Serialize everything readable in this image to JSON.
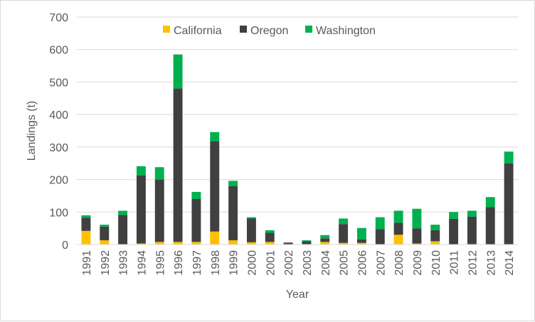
{
  "chart_data": {
    "type": "bar",
    "stacked": true,
    "title": "",
    "xlabel": "Year",
    "ylabel": "Landings (t)",
    "ylim": [
      0,
      700
    ],
    "yticks": [
      0,
      100,
      200,
      300,
      400,
      500,
      600,
      700
    ],
    "grid": "horizontal",
    "legend_position": "top-center",
    "categories": [
      "1991",
      "1992",
      "1993",
      "1994",
      "1995",
      "1996",
      "1997",
      "1998",
      "1999",
      "2000",
      "2001",
      "2002",
      "2003",
      "2004",
      "2005",
      "2006",
      "2007",
      "2008",
      "2009",
      "2010",
      "2011",
      "2012",
      "2013",
      "2014"
    ],
    "series": [
      {
        "name": "California",
        "color": "#ffc000",
        "values": [
          42,
          13,
          0,
          3,
          8,
          8,
          8,
          40,
          13,
          7,
          8,
          0,
          0,
          8,
          5,
          5,
          0,
          30,
          3,
          10,
          0,
          0,
          0,
          0
        ]
      },
      {
        "name": "Oregon",
        "color": "#404040",
        "values": [
          40,
          42,
          91,
          210,
          192,
          472,
          132,
          278,
          167,
          73,
          28,
          6,
          10,
          11,
          58,
          11,
          47,
          37,
          47,
          34,
          79,
          86,
          115,
          250
        ]
      },
      {
        "name": "Washington",
        "color": "#00b050",
        "values": [
          8,
          6,
          13,
          28,
          38,
          105,
          22,
          28,
          16,
          4,
          8,
          0,
          3,
          10,
          17,
          35,
          37,
          37,
          60,
          17,
          21,
          18,
          31,
          36
        ]
      }
    ]
  }
}
